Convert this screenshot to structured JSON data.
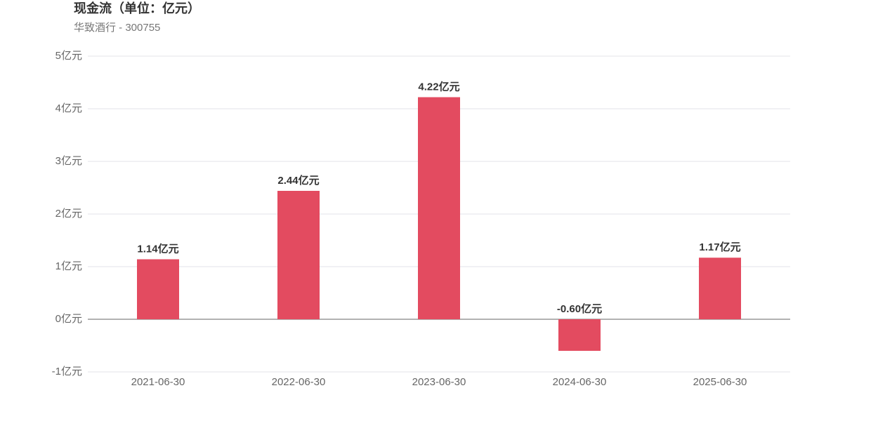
{
  "chart_data": {
    "type": "bar",
    "title": "现金流（单位：亿元）",
    "subtitle": "华致酒行 - 300755",
    "categories": [
      "2021-06-30",
      "2022-06-30",
      "2023-06-30",
      "2024-06-30",
      "2025-06-30"
    ],
    "values": [
      1.14,
      2.44,
      4.22,
      -0.6,
      1.17
    ],
    "value_labels": [
      "1.14亿元",
      "2.44亿元",
      "4.22亿元",
      "-0.60亿元",
      "1.17亿元"
    ],
    "color": "#e34b60",
    "ylim": [
      -1,
      5
    ],
    "yticks": [
      {
        "value": -1,
        "label": "-1亿元"
      },
      {
        "value": 0,
        "label": "0亿元"
      },
      {
        "value": 1,
        "label": "1亿元"
      },
      {
        "value": 2,
        "label": "2亿元"
      },
      {
        "value": 3,
        "label": "3亿元"
      },
      {
        "value": 4,
        "label": "4亿元"
      },
      {
        "value": 5,
        "label": "5亿元"
      }
    ],
    "grid": true
  }
}
